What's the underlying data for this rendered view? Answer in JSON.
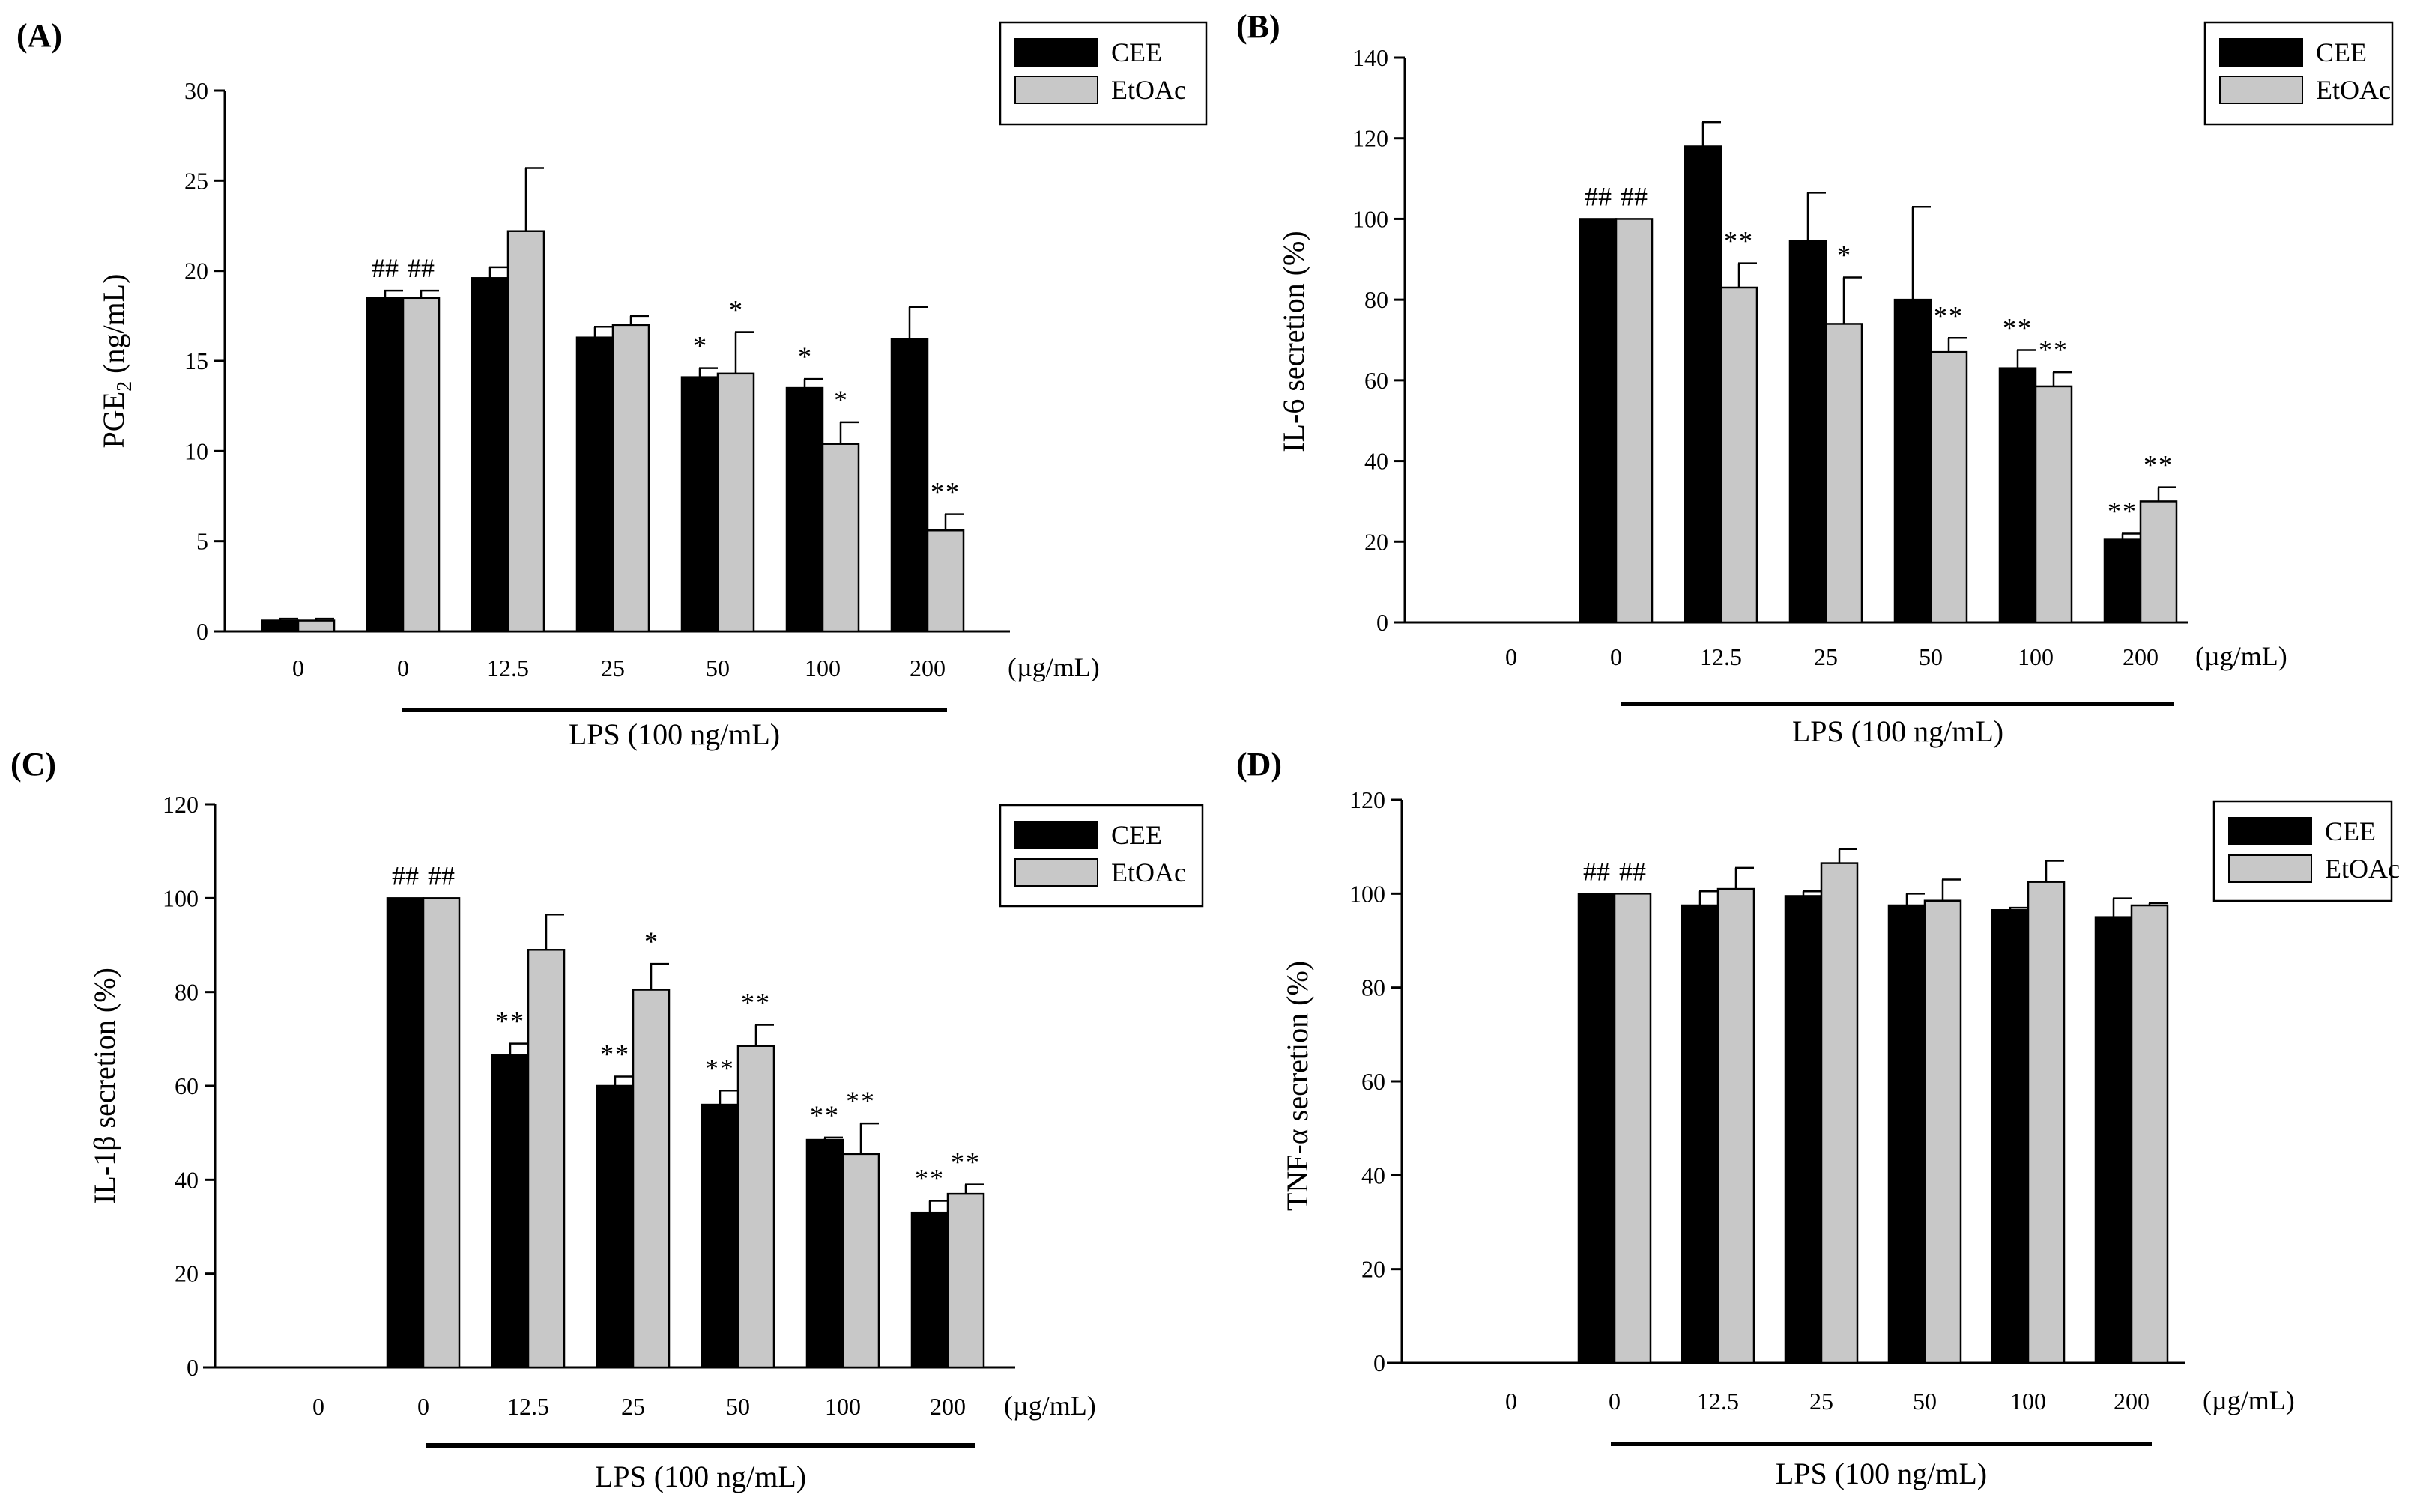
{
  "legend": {
    "series": [
      "CEE",
      "EtOAc"
    ]
  },
  "colors": {
    "cee": "#000000",
    "etoac": "#c8c8c8",
    "axis": "#000000"
  },
  "x_unit": "(µg/mL)",
  "lps_label": "LPS (100 ng/mL)",
  "chart_data": [
    {
      "panel": "(A)",
      "type": "bar",
      "title": "",
      "ylabel_main": "PGE",
      "ylabel_sub": "2",
      "ylabel_tail": " (ng/mL)",
      "xlabel": "(µg/mL)",
      "categories": [
        "0",
        "0",
        "12.5",
        "25",
        "50",
        "100",
        "200"
      ],
      "ylim": [
        0,
        30
      ],
      "yticks": [
        0,
        5,
        10,
        15,
        20,
        25,
        30
      ],
      "series": [
        {
          "name": "CEE",
          "values": [
            0.6,
            18.5,
            19.6,
            16.3,
            14.1,
            13.5,
            16.2
          ],
          "errors": [
            0.1,
            0.4,
            0.6,
            0.6,
            0.5,
            0.5,
            1.8
          ],
          "marks": [
            "",
            "##",
            "",
            "",
            "*",
            "*",
            ""
          ]
        },
        {
          "name": "EtOAc",
          "values": [
            0.6,
            18.5,
            22.2,
            17.0,
            14.3,
            10.4,
            5.6
          ],
          "errors": [
            0.1,
            0.4,
            3.5,
            0.5,
            2.3,
            1.2,
            0.9
          ],
          "marks": [
            "",
            "##",
            "",
            "",
            "*",
            "*",
            "**"
          ]
        }
      ]
    },
    {
      "panel": "(B)",
      "type": "bar",
      "title": "",
      "ylabel_main": "IL-6 secretion (%)",
      "ylabel_sub": "",
      "ylabel_tail": "",
      "xlabel": "(µg/mL)",
      "categories": [
        "0",
        "0",
        "12.5",
        "25",
        "50",
        "100",
        "200"
      ],
      "ylim": [
        0,
        140
      ],
      "yticks": [
        0,
        20,
        40,
        60,
        80,
        100,
        120,
        140
      ],
      "series": [
        {
          "name": "CEE",
          "values": [
            0,
            100,
            118,
            94.5,
            80,
            63,
            20.5
          ],
          "errors": [
            0,
            0,
            6,
            12,
            23,
            4.5,
            1.5
          ],
          "marks": [
            "",
            "##",
            "",
            "",
            "",
            "**",
            "**"
          ]
        },
        {
          "name": "EtOAc",
          "values": [
            0,
            100,
            83,
            74,
            67,
            58.5,
            30
          ],
          "errors": [
            0,
            0,
            6,
            11.5,
            3.5,
            3.5,
            3.5
          ],
          "marks": [
            "",
            "##",
            "**",
            "*",
            "**",
            "**",
            "**"
          ]
        }
      ]
    },
    {
      "panel": "(C)",
      "type": "bar",
      "title": "",
      "ylabel_main": "IL-1β secretion (%)",
      "ylabel_sub": "",
      "ylabel_tail": "",
      "xlabel": "(µg/mL)",
      "categories": [
        "0",
        "0",
        "12.5",
        "25",
        "50",
        "100",
        "200"
      ],
      "ylim": [
        0,
        120
      ],
      "yticks": [
        0,
        20,
        40,
        60,
        80,
        100,
        120
      ],
      "series": [
        {
          "name": "CEE",
          "values": [
            0,
            100,
            66.5,
            60,
            56,
            48.5,
            33
          ],
          "errors": [
            0,
            0,
            2.5,
            2,
            3,
            0.5,
            2.5
          ],
          "marks": [
            "",
            "##",
            "**",
            "**",
            "**",
            "**",
            "**"
          ]
        },
        {
          "name": "EtOAc",
          "values": [
            0,
            100,
            89,
            80.5,
            68.5,
            45.5,
            37
          ],
          "errors": [
            0,
            0,
            7.5,
            5.5,
            4.5,
            6.5,
            2
          ],
          "marks": [
            "",
            "##",
            "",
            "*",
            "**",
            "**",
            "**"
          ]
        }
      ]
    },
    {
      "panel": "(D)",
      "type": "bar",
      "title": "",
      "ylabel_main": "TNF-α secretion (%)",
      "ylabel_sub": "",
      "ylabel_tail": "",
      "xlabel": "(µg/mL)",
      "categories": [
        "0",
        "0",
        "12.5",
        "25",
        "50",
        "100",
        "200"
      ],
      "ylim": [
        0,
        120
      ],
      "yticks": [
        0,
        20,
        40,
        60,
        80,
        100,
        120
      ],
      "series": [
        {
          "name": "CEE",
          "values": [
            0,
            100,
            97.5,
            99.5,
            97.5,
            96.5,
            95
          ],
          "errors": [
            0,
            0,
            3,
            1,
            2.5,
            0.5,
            4
          ],
          "marks": [
            "",
            "##",
            "",
            "",
            "",
            "",
            ""
          ]
        },
        {
          "name": "EtOAc",
          "values": [
            0,
            100,
            101,
            106.5,
            98.5,
            102.5,
            97.5
          ],
          "errors": [
            0,
            0,
            4.5,
            3,
            4.5,
            4.5,
            0.5
          ],
          "marks": [
            "",
            "##",
            "",
            "",
            "",
            "",
            ""
          ]
        }
      ]
    }
  ]
}
